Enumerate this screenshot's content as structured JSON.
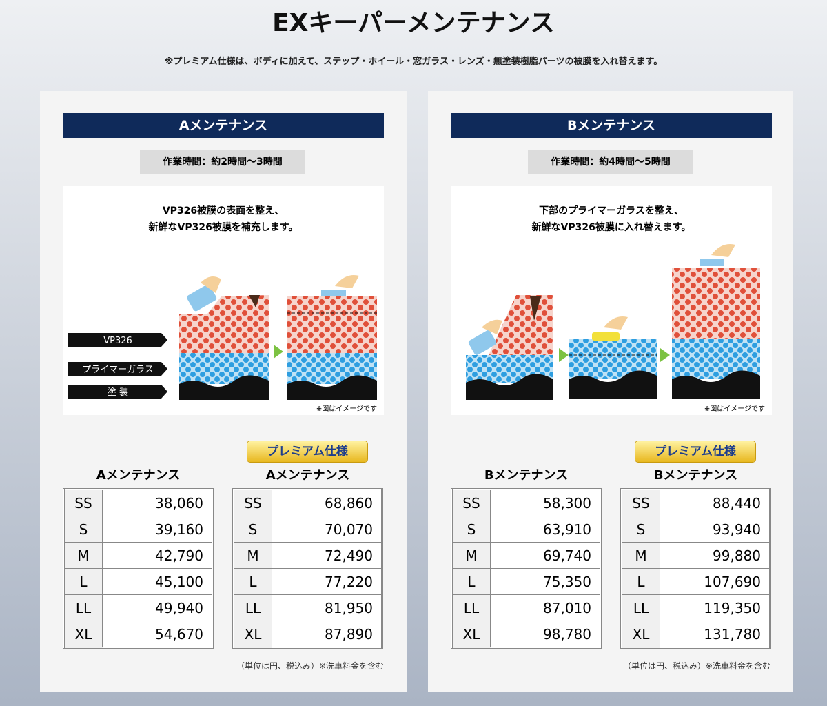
{
  "title": "EXキーパーメンテナンス",
  "note": "※プレミアム仕様は、ボディに加えて、ステップ・ホイール・窓ガラス・レンズ・無塗装樹脂パーツの被膜を入れ替えます。",
  "panels": [
    {
      "heading": "Aメンテナンス",
      "time": "作業時間：約2時間〜3時間",
      "diagram": {
        "caption": [
          "VP326被膜の表面を整え、",
          "新鮮なVP326被膜を補充します。"
        ],
        "layers": [
          "VP326",
          "プライマーガラス",
          "塗 装"
        ],
        "note": "※図はイメージです"
      },
      "tables": [
        {
          "title": "Aメンテナンス",
          "rows": [
            [
              "SS",
              "38,060"
            ],
            [
              "S",
              "39,160"
            ],
            [
              "M",
              "42,790"
            ],
            [
              "L",
              "45,100"
            ],
            [
              "LL",
              "49,940"
            ],
            [
              "XL",
              "54,670"
            ]
          ]
        },
        {
          "badge": "プレミアム仕様",
          "title": "Aメンテナンス",
          "rows": [
            [
              "SS",
              "68,860"
            ],
            [
              "S",
              "70,070"
            ],
            [
              "M",
              "72,490"
            ],
            [
              "L",
              "77,220"
            ],
            [
              "LL",
              "81,950"
            ],
            [
              "XL",
              "87,890"
            ]
          ]
        }
      ],
      "unit": "（単位は円、税込み）※洗車料金を含む"
    },
    {
      "heading": "Bメンテナンス",
      "time": "作業時間：約4時間〜5時間",
      "diagram": {
        "caption": [
          "下部のプライマーガラスを整え、",
          "新鮮なVP326被膜に入れ替えます。"
        ],
        "note": "※図はイメージです"
      },
      "tables": [
        {
          "title": "Bメンテナンス",
          "rows": [
            [
              "SS",
              "58,300"
            ],
            [
              "S",
              "63,910"
            ],
            [
              "M",
              "69,740"
            ],
            [
              "L",
              "75,350"
            ],
            [
              "LL",
              "87,010"
            ],
            [
              "XL",
              "98,780"
            ]
          ]
        },
        {
          "badge": "プレミアム仕様",
          "title": "Bメンテナンス",
          "rows": [
            [
              "SS",
              "88,440"
            ],
            [
              "S",
              "93,940"
            ],
            [
              "M",
              "99,880"
            ],
            [
              "L",
              "107,690"
            ],
            [
              "LL",
              "119,350"
            ],
            [
              "XL",
              "131,780"
            ]
          ]
        }
      ],
      "unit": "（単位は円、税込み）※洗車料金を含む"
    }
  ]
}
